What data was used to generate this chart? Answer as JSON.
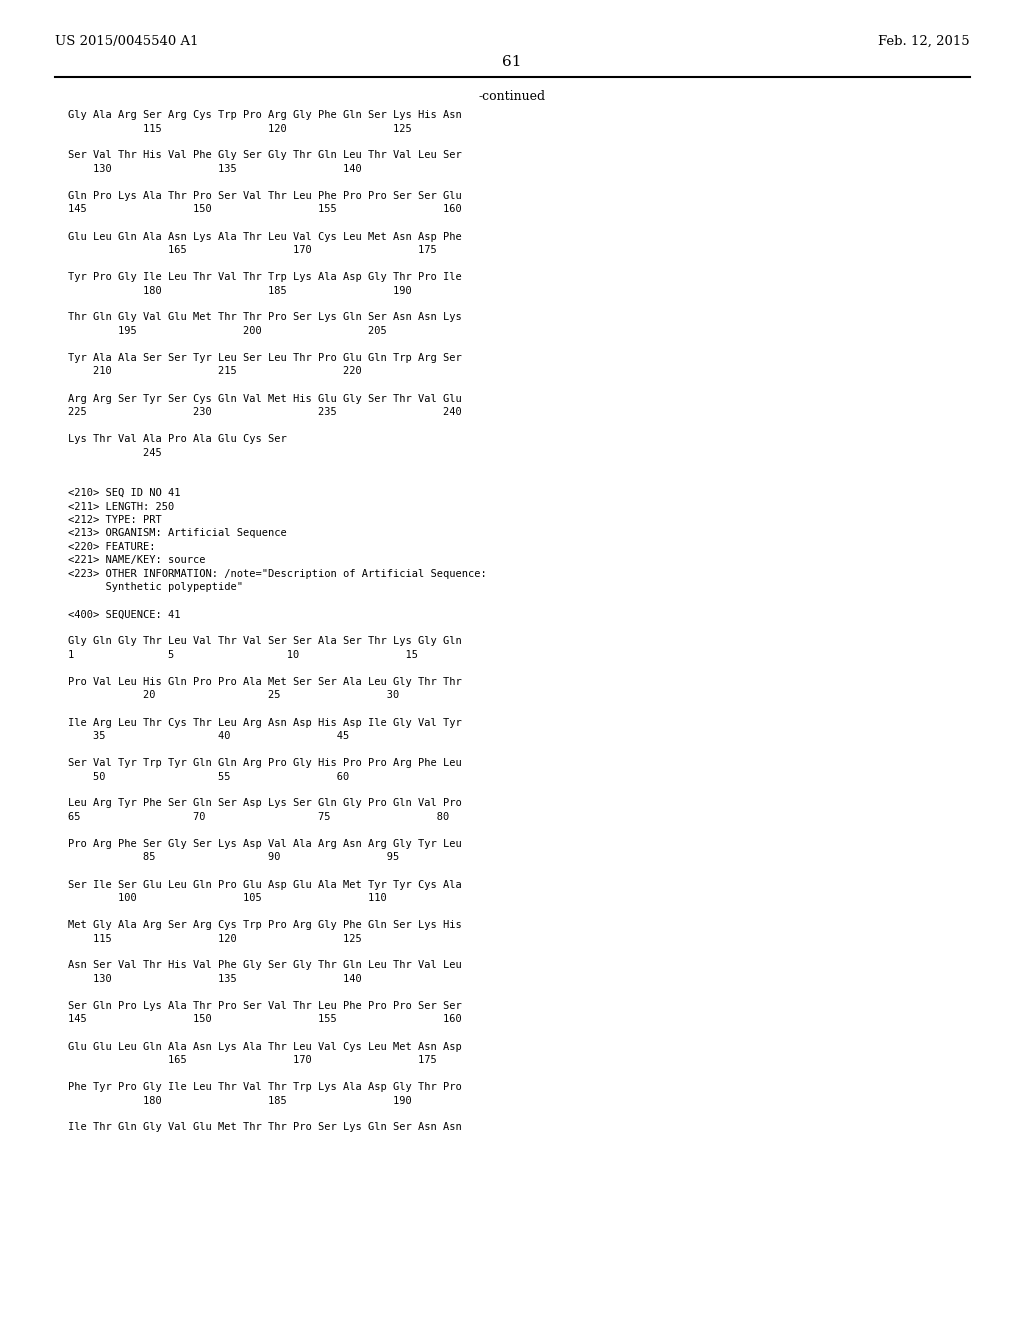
{
  "header_left": "US 2015/0045540 A1",
  "header_right": "Feb. 12, 2015",
  "page_number": "61",
  "continued_label": "-continued",
  "background_color": "#ffffff",
  "text_color": "#000000",
  "font_size": 7.5,
  "header_font_size": 9.5,
  "page_num_font_size": 11,
  "continued_font_size": 9,
  "lines": [
    "Gly Ala Arg Ser Arg Cys Trp Pro Arg Gly Phe Gln Ser Lys His Asn",
    "            115                 120                 125",
    "",
    "Ser Val Thr His Val Phe Gly Ser Gly Thr Gln Leu Thr Val Leu Ser",
    "    130                 135                 140",
    "",
    "Gln Pro Lys Ala Thr Pro Ser Val Thr Leu Phe Pro Pro Ser Ser Glu",
    "145                 150                 155                 160",
    "",
    "Glu Leu Gln Ala Asn Lys Ala Thr Leu Val Cys Leu Met Asn Asp Phe",
    "                165                 170                 175",
    "",
    "Tyr Pro Gly Ile Leu Thr Val Thr Trp Lys Ala Asp Gly Thr Pro Ile",
    "            180                 185                 190",
    "",
    "Thr Gln Gly Val Glu Met Thr Thr Pro Ser Lys Gln Ser Asn Asn Lys",
    "        195                 200                 205",
    "",
    "Tyr Ala Ala Ser Ser Tyr Leu Ser Leu Thr Pro Glu Gln Trp Arg Ser",
    "    210                 215                 220",
    "",
    "Arg Arg Ser Tyr Ser Cys Gln Val Met His Glu Gly Ser Thr Val Glu",
    "225                 230                 235                 240",
    "",
    "Lys Thr Val Ala Pro Ala Glu Cys Ser",
    "            245",
    "",
    "",
    "<210> SEQ ID NO 41",
    "<211> LENGTH: 250",
    "<212> TYPE: PRT",
    "<213> ORGANISM: Artificial Sequence",
    "<220> FEATURE:",
    "<221> NAME/KEY: source",
    "<223> OTHER INFORMATION: /note=\"Description of Artificial Sequence:",
    "      Synthetic polypeptide\"",
    "",
    "<400> SEQUENCE: 41",
    "",
    "Gly Gln Gly Thr Leu Val Thr Val Ser Ser Ala Ser Thr Lys Gly Gln",
    "1               5                  10                 15",
    "",
    "Pro Val Leu His Gln Pro Pro Ala Met Ser Ser Ala Leu Gly Thr Thr",
    "            20                  25                 30",
    "",
    "Ile Arg Leu Thr Cys Thr Leu Arg Asn Asp His Asp Ile Gly Val Tyr",
    "    35                  40                 45",
    "",
    "Ser Val Tyr Trp Tyr Gln Gln Arg Pro Gly His Pro Pro Arg Phe Leu",
    "    50                  55                 60",
    "",
    "Leu Arg Tyr Phe Ser Gln Ser Asp Lys Ser Gln Gly Pro Gln Val Pro",
    "65                  70                  75                 80",
    "",
    "Pro Arg Phe Ser Gly Ser Lys Asp Val Ala Arg Asn Arg Gly Tyr Leu",
    "            85                  90                 95",
    "",
    "Ser Ile Ser Glu Leu Gln Pro Glu Asp Glu Ala Met Tyr Tyr Cys Ala",
    "        100                 105                 110",
    "",
    "Met Gly Ala Arg Ser Arg Cys Trp Pro Arg Gly Phe Gln Ser Lys His",
    "    115                 120                 125",
    "",
    "Asn Ser Val Thr His Val Phe Gly Ser Gly Thr Gln Leu Thr Val Leu",
    "    130                 135                 140",
    "",
    "Ser Gln Pro Lys Ala Thr Pro Ser Val Thr Leu Phe Pro Pro Ser Ser",
    "145                 150                 155                 160",
    "",
    "Glu Glu Leu Gln Ala Asn Lys Ala Thr Leu Val Cys Leu Met Asn Asp",
    "                165                 170                 175",
    "",
    "Phe Tyr Pro Gly Ile Leu Thr Val Thr Trp Lys Ala Asp Gly Thr Pro",
    "            180                 185                 190",
    "",
    "Ile Thr Gln Gly Val Glu Met Thr Thr Pro Ser Lys Gln Ser Asn Asn"
  ]
}
